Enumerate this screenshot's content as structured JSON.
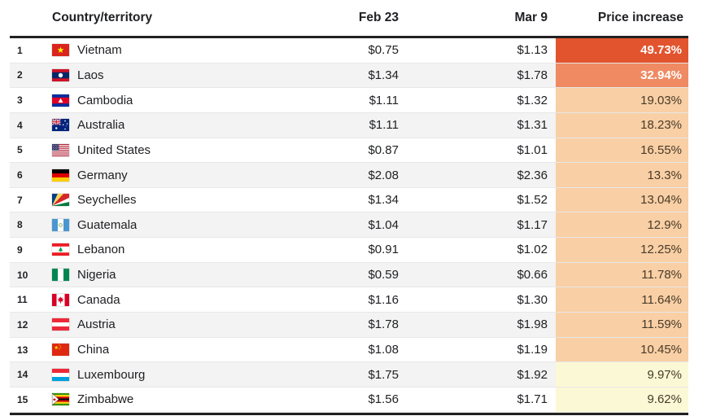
{
  "header": {
    "country": "Country/territory",
    "feb": "Feb 23",
    "mar": "Mar 9",
    "increase": "Price increase"
  },
  "colors": {
    "header_rule": "#212121",
    "row_alt_bg": "#f3f3f3",
    "row_border": "#e7e7e7",
    "body_text": "#202124",
    "increase_high": "#e2542e",
    "increase_mid_high": "#ef8a62",
    "increase_mid": "#f9cfa5",
    "increase_low": "#fbf8d6",
    "increase_dark_text": "#473a28",
    "increase_light_text": "#ffffff"
  },
  "rows": [
    {
      "rank": "1",
      "country": "Vietnam",
      "flag": "vietnam",
      "feb": "$0.75",
      "mar": "$1.13",
      "increase": "49.73%",
      "increase_bg": "#e2542e",
      "increase_text": "#ffffff",
      "increase_bold": true
    },
    {
      "rank": "2",
      "country": "Laos",
      "flag": "laos",
      "feb": "$1.34",
      "mar": "$1.78",
      "increase": "32.94%",
      "increase_bg": "#ef8a62",
      "increase_text": "#ffffff",
      "increase_bold": true
    },
    {
      "rank": "3",
      "country": "Cambodia",
      "flag": "cambodia",
      "feb": "$1.11",
      "mar": "$1.32",
      "increase": "19.03%",
      "increase_bg": "#f9cfa5",
      "increase_text": "#473a28",
      "increase_bold": false
    },
    {
      "rank": "4",
      "country": "Australia",
      "flag": "australia",
      "feb": "$1.11",
      "mar": "$1.31",
      "increase": "18.23%",
      "increase_bg": "#f9cfa5",
      "increase_text": "#473a28",
      "increase_bold": false
    },
    {
      "rank": "5",
      "country": "United States",
      "flag": "us",
      "feb": "$0.87",
      "mar": "$1.01",
      "increase": "16.55%",
      "increase_bg": "#f9cfa5",
      "increase_text": "#473a28",
      "increase_bold": false
    },
    {
      "rank": "6",
      "country": "Germany",
      "flag": "germany",
      "feb": "$2.08",
      "mar": "$2.36",
      "increase": "13.3%",
      "increase_bg": "#f9cfa5",
      "increase_text": "#473a28",
      "increase_bold": false
    },
    {
      "rank": "7",
      "country": "Seychelles",
      "flag": "seychelles",
      "feb": "$1.34",
      "mar": "$1.52",
      "increase": "13.04%",
      "increase_bg": "#f9cfa5",
      "increase_text": "#473a28",
      "increase_bold": false
    },
    {
      "rank": "8",
      "country": "Guatemala",
      "flag": "guatemala",
      "feb": "$1.04",
      "mar": "$1.17",
      "increase": "12.9%",
      "increase_bg": "#f9cfa5",
      "increase_text": "#473a28",
      "increase_bold": false
    },
    {
      "rank": "9",
      "country": "Lebanon",
      "flag": "lebanon",
      "feb": "$0.91",
      "mar": "$1.02",
      "increase": "12.25%",
      "increase_bg": "#f9cfa5",
      "increase_text": "#473a28",
      "increase_bold": false
    },
    {
      "rank": "10",
      "country": "Nigeria",
      "flag": "nigeria",
      "feb": "$0.59",
      "mar": "$0.66",
      "increase": "11.78%",
      "increase_bg": "#f9cfa5",
      "increase_text": "#473a28",
      "increase_bold": false
    },
    {
      "rank": "11",
      "country": "Canada",
      "flag": "canada",
      "feb": "$1.16",
      "mar": "$1.30",
      "increase": "11.64%",
      "increase_bg": "#f9cfa5",
      "increase_text": "#473a28",
      "increase_bold": false
    },
    {
      "rank": "12",
      "country": "Austria",
      "flag": "austria",
      "feb": "$1.78",
      "mar": "$1.98",
      "increase": "11.59%",
      "increase_bg": "#f9cfa5",
      "increase_text": "#473a28",
      "increase_bold": false
    },
    {
      "rank": "13",
      "country": "China",
      "flag": "china",
      "feb": "$1.08",
      "mar": "$1.19",
      "increase": "10.45%",
      "increase_bg": "#f9cfa5",
      "increase_text": "#473a28",
      "increase_bold": false
    },
    {
      "rank": "14",
      "country": "Luxembourg",
      "flag": "luxembourg",
      "feb": "$1.75",
      "mar": "$1.92",
      "increase": "9.97%",
      "increase_bg": "#fbf8d6",
      "increase_text": "#473a28",
      "increase_bold": false
    },
    {
      "rank": "15",
      "country": "Zimbabwe",
      "flag": "zimbabwe",
      "feb": "$1.56",
      "mar": "$1.71",
      "increase": "9.62%",
      "increase_bg": "#fbf8d6",
      "increase_text": "#473a28",
      "increase_bold": false
    }
  ],
  "chart_data": {
    "type": "table",
    "columns": [
      "Country/territory",
      "Feb 23",
      "Mar 9",
      "Price increase"
    ],
    "rows": [
      [
        "Vietnam",
        0.75,
        1.13,
        49.73
      ],
      [
        "Laos",
        1.34,
        1.78,
        32.94
      ],
      [
        "Cambodia",
        1.11,
        1.32,
        19.03
      ],
      [
        "Australia",
        1.11,
        1.31,
        18.23
      ],
      [
        "United States",
        0.87,
        1.01,
        16.55
      ],
      [
        "Germany",
        2.08,
        2.36,
        13.3
      ],
      [
        "Seychelles",
        1.34,
        1.52,
        13.04
      ],
      [
        "Guatemala",
        1.04,
        1.17,
        12.9
      ],
      [
        "Lebanon",
        0.91,
        1.02,
        12.25
      ],
      [
        "Nigeria",
        0.59,
        0.66,
        11.78
      ],
      [
        "Canada",
        1.16,
        1.3,
        11.64
      ],
      [
        "Austria",
        1.78,
        1.98,
        11.59
      ],
      [
        "China",
        1.08,
        1.19,
        10.45
      ],
      [
        "Luxembourg",
        1.75,
        1.92,
        9.97
      ],
      [
        "Zimbabwe",
        1.56,
        1.71,
        9.62
      ]
    ],
    "notes": "Heat-colored Price increase column: >30% strong orange, 10-20% light peach, <10% pale yellow; values in USD"
  }
}
